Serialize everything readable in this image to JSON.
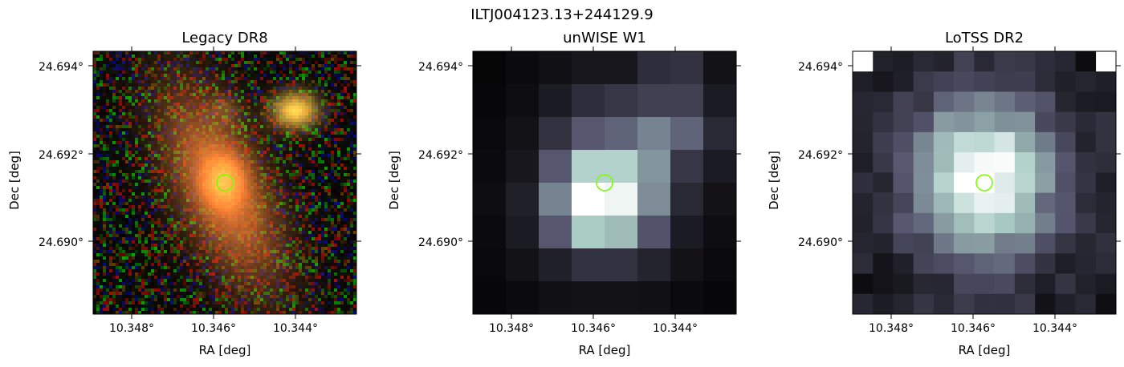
{
  "figure": {
    "title": "ILTJ004123.13+244129.9"
  },
  "panels": [
    {
      "title": "Legacy DR8",
      "colormap": "rgb-optical",
      "xlabel": "RA [deg]",
      "ylabel": "Dec [deg]",
      "xticks": [
        "10.348°",
        "10.346°",
        "10.344°"
      ],
      "yticks": [
        "24.694°",
        "24.692°",
        "24.690°"
      ],
      "marker_color": "#7CFC00"
    },
    {
      "title": "unWISE W1",
      "colormap": "bone",
      "xlabel": "RA [deg]",
      "ylabel": "Dec [deg]",
      "xticks": [
        "10.348°",
        "10.346°",
        "10.344°"
      ],
      "yticks": [
        "24.694°",
        "24.692°",
        "24.690°"
      ],
      "marker_color": "#7CFC00"
    },
    {
      "title": "LoTSS DR2",
      "colormap": "bone",
      "xlabel": "RA [deg]",
      "ylabel": "Dec [deg]",
      "xticks": [
        "10.348°",
        "10.346°",
        "10.344°"
      ],
      "yticks": [
        "24.694°",
        "24.692°",
        "24.690°"
      ],
      "marker_color": "#7CFC00"
    }
  ]
}
